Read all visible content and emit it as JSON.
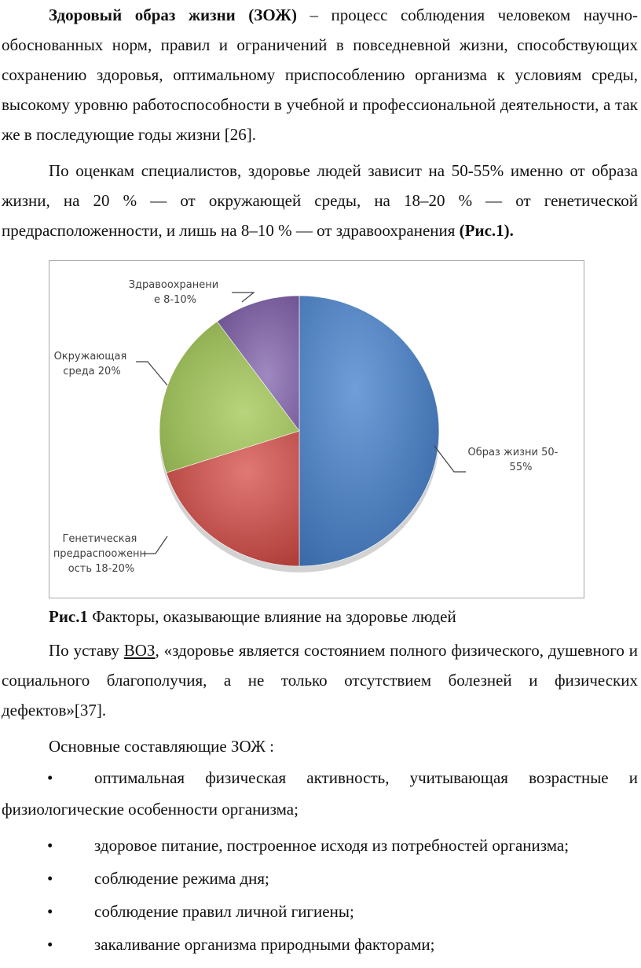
{
  "para1": {
    "bold": "Здоровый образ жизни (ЗОЖ)",
    "text": " – процесс соблюдения человеком научно-обоснованных норм, правил и ограничений в повседневной жизни, способствующих сохранению здоровья, оптимальному приспособлению организма к условиям среды, высокому уровню работоспособности в учебной  и профессиональной деятельности, а так же в последующие годы жизни [26]."
  },
  "para2": {
    "text": "По оценкам специалистов, здоровье людей зависит на 50-55% именно от образа жизни, на 20 % — от окружающей среды, на 18–20 % — от генетической предрасположенности, и лишь на 8–10 % — от здравоохранения ",
    "bold": "(Рис.1)."
  },
  "chart_data": {
    "type": "pie",
    "categories": [
      "Образ жизни 50-55%",
      "Генетическая предраспооженность 18-20%",
      "Окружающая среда 20%",
      "Здравоохранение 8-10%"
    ],
    "values": [
      50,
      20,
      20,
      10
    ],
    "colors": [
      "#4a7ebb",
      "#c0504d",
      "#9bbb59",
      "#8064a2"
    ],
    "labels": {
      "slice0": [
        "Образ жизни 50-",
        "55%"
      ],
      "slice1": [
        "Генетическая",
        "предраспооженн",
        "ость 18-20%"
      ],
      "slice2": [
        "Окружающая",
        "среда 20%"
      ],
      "slice3": [
        "Здравоохранени",
        "е 8-10%"
      ]
    }
  },
  "caption": {
    "bold": "Рис.1",
    "text": "  Факторы, оказывающие влияние на здоровье людей"
  },
  "para3": {
    "pre": "По уставу ",
    "link": "ВОЗ",
    "post": ", «здоровье является состоянием полного физического, душевного и социального благополучия, а не только отсутствием болезней и физических дефектов»[37]."
  },
  "para4": {
    "text": "Основные составляющие ЗОЖ :"
  },
  "bullets": {
    "dot": "•",
    "b0_line1": "оптимальная физическая активность, учитывающая возрастные и",
    "b0_line2": "физиологические особенности организма;",
    "b1": "здоровое питание, построенное  исходя из потребностей организма;",
    "b2": "соблюдение режима дня;",
    "b3": "соблюдение правил личной гигиены;",
    "b4": "закаливание организма природными факторами;"
  }
}
